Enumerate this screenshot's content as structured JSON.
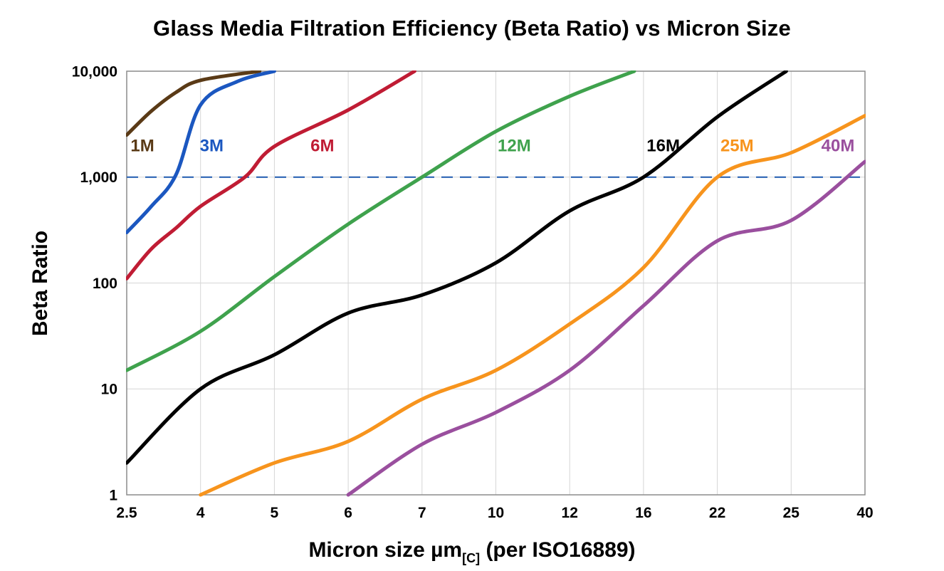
{
  "chart_data": {
    "type": "line",
    "title": "Glass Media Filtration Efficiency (Beta Ratio) vs Micron Size",
    "xlabel_main": "Micron size µm",
    "xlabel_sub": "[C]",
    "xlabel_tail": " (per ISO16889)",
    "ylabel": "Beta Ratio",
    "x_categories": [
      2.5,
      4,
      5,
      6,
      7,
      10,
      12,
      16,
      22,
      25,
      40
    ],
    "x_tick_labels": [
      "2.5",
      "4",
      "5",
      "6",
      "7",
      "10",
      "12",
      "16",
      "22",
      "25",
      "40"
    ],
    "y_scale": "log",
    "ylim": [
      1,
      10000
    ],
    "y_ticks": [
      1,
      10,
      100,
      1000,
      10000
    ],
    "y_tick_labels": [
      "1",
      "10",
      "100",
      "1,000",
      "10,000"
    ],
    "grid": true,
    "grid_color": "#d6d6d6",
    "axis_color": "#8c8c8c",
    "legend_position": "inline-labels",
    "reference_line": {
      "y": 1000,
      "style": "dashed",
      "color": "#2d64b4"
    },
    "series": [
      {
        "name": "1M",
        "color": "#5a3a16",
        "label_at": [
          2.82,
          2000
        ],
        "points": [
          [
            2.5,
            2500
          ],
          [
            3,
            4200
          ],
          [
            3.5,
            6300
          ],
          [
            4,
            8200
          ],
          [
            4.8,
            10000
          ]
        ]
      },
      {
        "name": "3M",
        "color": "#1b57c0",
        "label_at": [
          4.15,
          2000
        ],
        "points": [
          [
            2.5,
            300
          ],
          [
            3,
            530
          ],
          [
            3.5,
            1050
          ],
          [
            4,
            4800
          ],
          [
            4.5,
            8000
          ],
          [
            5,
            10000
          ]
        ]
      },
      {
        "name": "6M",
        "color": "#c01c34",
        "label_at": [
          5.65,
          2000
        ],
        "points": [
          [
            2.5,
            110
          ],
          [
            3,
            210
          ],
          [
            3.5,
            330
          ],
          [
            4,
            530
          ],
          [
            4.6,
            1000
          ],
          [
            5,
            1950
          ],
          [
            6,
            4300
          ],
          [
            6.9,
            10000
          ]
        ]
      },
      {
        "name": "12M",
        "color": "#3fa24d",
        "label_at": [
          10.5,
          2000
        ],
        "points": [
          [
            2.5,
            15
          ],
          [
            4,
            35
          ],
          [
            5,
            115
          ],
          [
            6,
            360
          ],
          [
            7,
            1000
          ],
          [
            10,
            2700
          ],
          [
            12,
            5800
          ],
          [
            15.5,
            10000
          ]
        ]
      },
      {
        "name": "16M",
        "color": "#000000",
        "label_at": [
          17.6,
          2000
        ],
        "points": [
          [
            2.5,
            2
          ],
          [
            4,
            10
          ],
          [
            5,
            21
          ],
          [
            6,
            52
          ],
          [
            7,
            77
          ],
          [
            10,
            155
          ],
          [
            12,
            480
          ],
          [
            16,
            1000
          ],
          [
            22,
            3700
          ],
          [
            24.8,
            10000
          ]
        ]
      },
      {
        "name": "25M",
        "color": "#f7941d",
        "label_at": [
          22.8,
          2000
        ],
        "points": [
          [
            4,
            1
          ],
          [
            5,
            2
          ],
          [
            6,
            3.2
          ],
          [
            7,
            8
          ],
          [
            10,
            15
          ],
          [
            12,
            41
          ],
          [
            16,
            140
          ],
          [
            22,
            1000
          ],
          [
            25,
            1700
          ],
          [
            40,
            3800
          ]
        ]
      },
      {
        "name": "40M",
        "color": "#9a4f9e",
        "label_at": [
          34.5,
          2000
        ],
        "points": [
          [
            6,
            1
          ],
          [
            7,
            3
          ],
          [
            10,
            6
          ],
          [
            12,
            15
          ],
          [
            16,
            61
          ],
          [
            22,
            250
          ],
          [
            25,
            390
          ],
          [
            40,
            1400
          ]
        ]
      }
    ]
  }
}
